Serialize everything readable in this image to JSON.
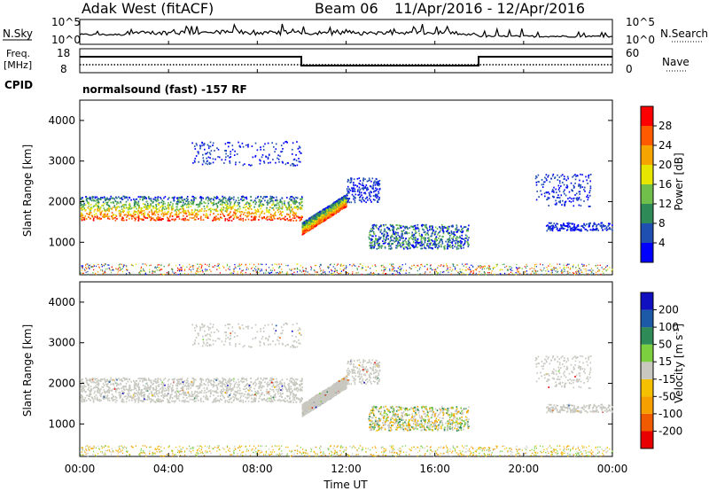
{
  "header": {
    "station": "Adak West (fitACF)",
    "beam": "Beam 06",
    "dates": "11/Apr/2016 - 12/Apr/2016"
  },
  "noise_panel": {
    "left_label": "N.Sky",
    "right_label": "N.Search",
    "left_ticks": [
      "10^5",
      "10^0"
    ],
    "right_ticks": [
      "10^5",
      "10^0"
    ]
  },
  "freq_panel": {
    "left_label_1": "Freq.",
    "left_label_2": "[MHz]",
    "left_ticks": [
      "18",
      "8"
    ],
    "right_label": "Nave",
    "right_ticks": [
      "60",
      "0"
    ],
    "cpid_label": "CPID",
    "cpid_text": "normalsound (fast) -157 RF"
  },
  "colors": {
    "power": [
      "#0000ff",
      "#1f4fb0",
      "#2e8b57",
      "#6fbf4a",
      "#e6e600",
      "#f5a400",
      "#ff5a00",
      "#ff0000"
    ],
    "velocity": [
      "#e80000",
      "#f05a00",
      "#f5a000",
      "#f5c000",
      "#c8c8c0",
      "#7cd040",
      "#2e8b57",
      "#1c5aa8",
      "#1010c0"
    ],
    "ground_scatter": "#c8c8c0"
  },
  "chart_data": [
    {
      "type": "heatmap",
      "name": "power",
      "ylabel": "Slant Range [km]",
      "ylim": [
        200,
        4500
      ],
      "y_ticks": [
        "4000",
        "3000",
        "2000",
        "1000"
      ],
      "colorbar_label": "Power [dB]",
      "colorbar_ticks": [
        "28",
        "24",
        "20",
        "16",
        "12",
        "8",
        "4"
      ],
      "x_ticks": [
        "00:00",
        "04:00",
        "08:00",
        "12:00",
        "16:00",
        "20:00",
        "00:00"
      ],
      "regions": [
        {
          "t0": 0.0,
          "t1": 10.0,
          "r0": 1550,
          "r1": 2150,
          "level": "strong"
        },
        {
          "t0": 10.0,
          "t1": 12.0,
          "r0": 1200,
          "r1": 1900,
          "level": "strong"
        },
        {
          "t0": 12.0,
          "t1": 13.5,
          "r0": 2000,
          "r1": 2600,
          "level": "weak"
        },
        {
          "t0": 13.0,
          "t1": 17.5,
          "r0": 850,
          "r1": 1450,
          "level": "medium"
        },
        {
          "t0": 5.0,
          "t1": 10.0,
          "r0": 2900,
          "r1": 3500,
          "level": "weak"
        },
        {
          "t0": 21.0,
          "t1": 24.0,
          "r0": 1300,
          "r1": 1500,
          "level": "weak"
        },
        {
          "t0": 20.5,
          "t1": 23.0,
          "r0": 1900,
          "r1": 2700,
          "level": "weak"
        }
      ]
    },
    {
      "type": "heatmap",
      "name": "velocity",
      "ylabel": "Slant Range [km]",
      "ylim": [
        200,
        4500
      ],
      "y_ticks": [
        "4000",
        "3000",
        "2000",
        "1000"
      ],
      "colorbar_label": "Velocity [m s^-1]",
      "colorbar_ticks": [
        "200",
        "100",
        "50",
        "15",
        "-15",
        "-50",
        "-100",
        "-200"
      ],
      "x_ticks": [
        "00:00",
        "04:00",
        "08:00",
        "12:00",
        "16:00",
        "20:00",
        "00:00"
      ],
      "xlabel": "Time UT"
    }
  ]
}
